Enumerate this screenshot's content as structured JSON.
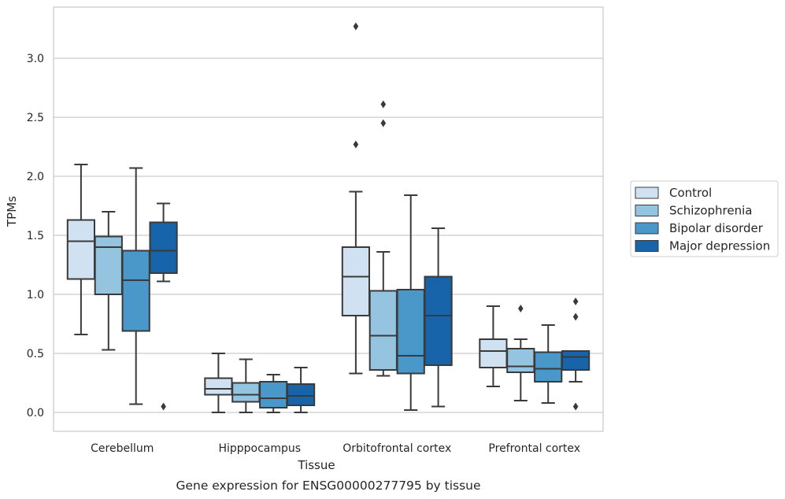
{
  "chart_data": {
    "type": "box",
    "caption": "Gene expression for ENSG00000277795 by tissue",
    "xlabel": "Tissue",
    "ylabel": "TPMs",
    "ylim": [
      -0.16,
      3.44
    ],
    "yticks": [
      0.0,
      0.5,
      1.0,
      1.5,
      2.0,
      2.5,
      3.0
    ],
    "ytick_labels": [
      "0.0",
      "0.5",
      "1.0",
      "1.5",
      "2.0",
      "2.5",
      "3.0"
    ],
    "grid": "horizontal",
    "legend_position": "right",
    "categories": [
      "Cerebellum",
      "Hipppocampus",
      "Orbitofrontal cortex",
      "Prefrontal cortex"
    ],
    "series": [
      {
        "name": "Control",
        "color": "#d0e1f2",
        "boxes": [
          {
            "whislo": 0.66,
            "q1": 1.13,
            "med": 1.45,
            "q3": 1.63,
            "whishi": 2.1,
            "fliers": []
          },
          {
            "whislo": 0.0,
            "q1": 0.15,
            "med": 0.2,
            "q3": 0.29,
            "whishi": 0.5,
            "fliers": []
          },
          {
            "whislo": 0.33,
            "q1": 0.82,
            "med": 1.15,
            "q3": 1.4,
            "whishi": 1.87,
            "fliers": [
              2.27,
              3.27
            ]
          },
          {
            "whislo": 0.22,
            "q1": 0.38,
            "med": 0.52,
            "q3": 0.62,
            "whishi": 0.9,
            "fliers": []
          }
        ]
      },
      {
        "name": "Schizophrenia",
        "color": "#94c4df",
        "boxes": [
          {
            "whislo": 0.53,
            "q1": 1.0,
            "med": 1.4,
            "q3": 1.49,
            "whishi": 1.7,
            "fliers": []
          },
          {
            "whislo": 0.0,
            "q1": 0.09,
            "med": 0.15,
            "q3": 0.25,
            "whishi": 0.45,
            "fliers": []
          },
          {
            "whislo": 0.31,
            "q1": 0.36,
            "med": 0.65,
            "q3": 1.03,
            "whishi": 1.36,
            "fliers": [
              2.45,
              2.61
            ]
          },
          {
            "whislo": 0.1,
            "q1": 0.34,
            "med": 0.39,
            "q3": 0.54,
            "whishi": 0.62,
            "fliers": [
              0.88
            ]
          }
        ]
      },
      {
        "name": "Bipolar disorder",
        "color": "#4a98c9",
        "boxes": [
          {
            "whislo": 0.07,
            "q1": 0.69,
            "med": 1.12,
            "q3": 1.37,
            "whishi": 2.07,
            "fliers": []
          },
          {
            "whislo": 0.0,
            "q1": 0.04,
            "med": 0.12,
            "q3": 0.26,
            "whishi": 0.32,
            "fliers": []
          },
          {
            "whislo": 0.02,
            "q1": 0.33,
            "med": 0.48,
            "q3": 1.04,
            "whishi": 1.84,
            "fliers": []
          },
          {
            "whislo": 0.08,
            "q1": 0.26,
            "med": 0.37,
            "q3": 0.51,
            "whishi": 0.74,
            "fliers": []
          }
        ]
      },
      {
        "name": "Major depression",
        "color": "#1764ab",
        "boxes": [
          {
            "whislo": 1.11,
            "q1": 1.18,
            "med": 1.37,
            "q3": 1.61,
            "whishi": 1.77,
            "fliers": [
              0.05
            ]
          },
          {
            "whislo": 0.0,
            "q1": 0.06,
            "med": 0.14,
            "q3": 0.24,
            "whishi": 0.38,
            "fliers": []
          },
          {
            "whislo": 0.05,
            "q1": 0.4,
            "med": 0.82,
            "q3": 1.15,
            "whishi": 1.56,
            "fliers": []
          },
          {
            "whislo": 0.26,
            "q1": 0.36,
            "med": 0.47,
            "q3": 0.52,
            "whishi": 0.52,
            "fliers": [
              0.05,
              0.81,
              0.94
            ]
          }
        ]
      }
    ]
  }
}
